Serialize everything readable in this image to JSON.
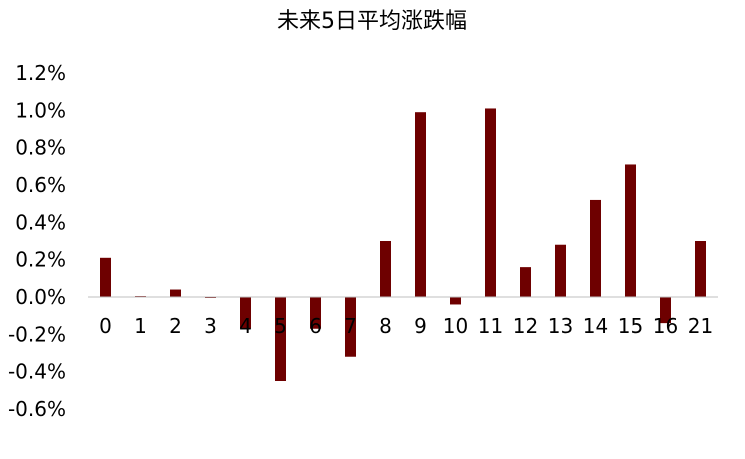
{
  "chart_data": {
    "type": "bar",
    "title": "未来5日平均涨跌幅",
    "xlabel": "",
    "ylabel": "",
    "categories": [
      "0",
      "1",
      "2",
      "3",
      "4",
      "5",
      "6",
      "7",
      "8",
      "9",
      "10",
      "11",
      "12",
      "13",
      "14",
      "15",
      "16",
      "21"
    ],
    "series": [
      {
        "values": [
          0.21,
          0.005,
          0.04,
          -0.005,
          -0.17,
          -0.45,
          -0.17,
          -0.32,
          0.3,
          0.99,
          -0.04,
          1.01,
          0.16,
          0.28,
          0.52,
          0.71,
          -0.14,
          0.3
        ]
      }
    ],
    "ylim": [
      -0.6,
      1.2
    ],
    "yticks": [
      -0.6,
      -0.4,
      -0.2,
      0.0,
      0.2,
      0.4,
      0.6,
      0.8,
      1.0,
      1.2
    ],
    "ytick_labels": [
      "-0.6%",
      "-0.4%",
      "-0.2%",
      "0.0%",
      "0.2%",
      "0.4%",
      "0.6%",
      "0.8%",
      "1.0%",
      "1.2%"
    ],
    "legend": "none",
    "grid": false,
    "colors": {
      "bar": "#6e0000",
      "axis": "#bfbfbf"
    }
  }
}
